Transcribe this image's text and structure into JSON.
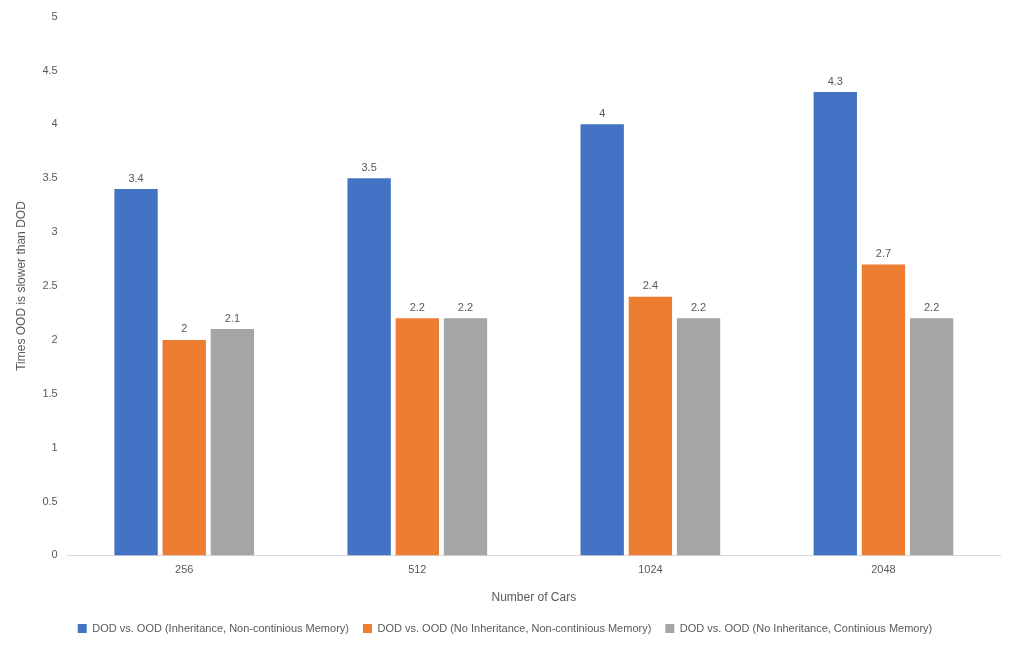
{
  "chart_data": {
    "type": "bar",
    "y_label": "Times OOD is slower than DOD",
    "x_label": "Number of Cars",
    "categories": [
      "256",
      "512",
      "1024",
      "2048"
    ],
    "series": [
      {
        "name": "DOD vs. OOD (Inheritance, Non-continious Memory)",
        "color": "#4472c4",
        "values": [
          3.4,
          3.5,
          4,
          4.3
        ]
      },
      {
        "name": "DOD vs. OOD (No Inheritance, Non-continious Memory)",
        "color": "#ed7d31",
        "values": [
          2,
          2.2,
          2.4,
          2.7
        ]
      },
      {
        "name": "DOD vs. OOD (No Inheritance, Continious Memory)",
        "color": "#a5a5a5",
        "values": [
          2.1,
          2.2,
          2.2,
          2.2
        ]
      }
    ],
    "ylim": [
      0,
      5
    ],
    "yticks": [
      0,
      0.5,
      1,
      1.5,
      2,
      2.5,
      3,
      3.5,
      4,
      4.5,
      5
    ],
    "grid": false,
    "legend": "bottom",
    "data_labels": true
  }
}
